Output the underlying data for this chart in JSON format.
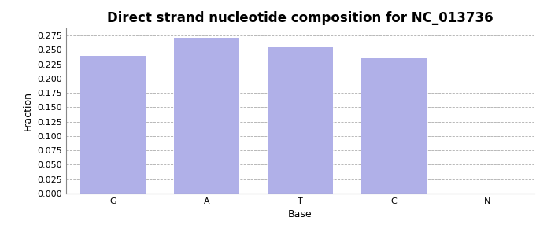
{
  "title": "Direct strand nucleotide composition for NC_013736",
  "categories": [
    "G",
    "A",
    "T",
    "C",
    "N"
  ],
  "values": [
    0.239,
    0.271,
    0.255,
    0.235,
    0.0
  ],
  "bar_color": "#b0b0e8",
  "bar_edgecolor": "#b0b0e8",
  "xlabel": "Base",
  "ylabel": "Fraction",
  "ylim_max": 0.2875,
  "yticks": [
    0.0,
    0.025,
    0.05,
    0.075,
    0.1,
    0.125,
    0.15,
    0.175,
    0.2,
    0.225,
    0.25,
    0.275
  ],
  "title_fontsize": 12,
  "axis_label_fontsize": 9,
  "tick_fontsize": 8,
  "background_color": "#ffffff",
  "grid_color": "#999999",
  "bar_width": 0.7
}
